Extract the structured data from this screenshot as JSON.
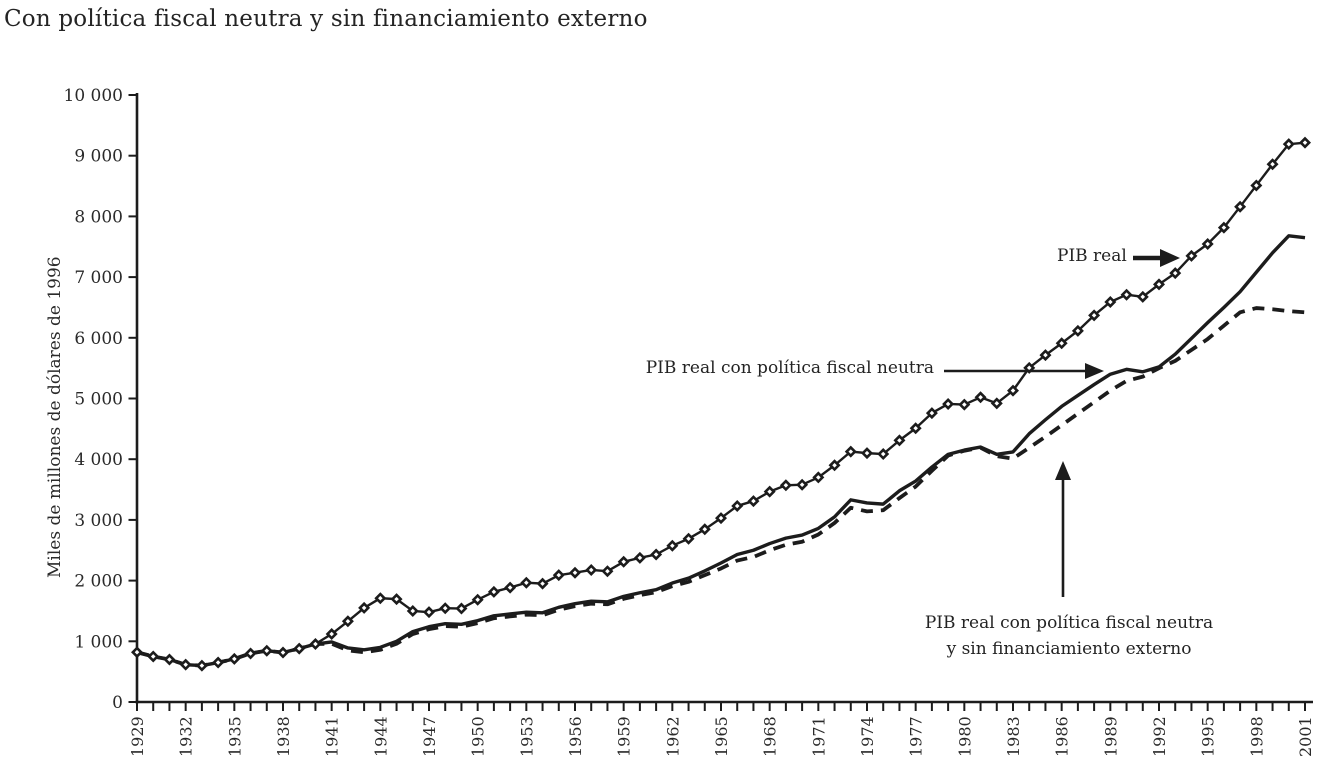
{
  "title": "Con política fiscal neutra y sin financiamiento externo",
  "colors": {
    "ink": "#1c1c1c",
    "text": "#2a2a2a",
    "background": "#ffffff"
  },
  "annotations": {
    "pib_real": "PIB real",
    "neutra": "PIB real con política fiscal neutra",
    "sin_fin_line1": "PIB real con política fiscal neutra",
    "sin_fin_line2": "y sin financiamiento externo"
  },
  "chart_data": {
    "type": "line",
    "title": "Con política fiscal neutra y sin financiamiento externo",
    "xlabel": "",
    "ylabel": "Miles de millones de dólares de 1996",
    "ylim": [
      0,
      10000
    ],
    "ytick_step": 1000,
    "ytick_labels": [
      "0",
      "1 000",
      "2 000",
      "3 000",
      "4 000",
      "5 000",
      "6 000",
      "7 000",
      "8 000",
      "9 000",
      "10 000"
    ],
    "x_start": 1929,
    "x_end": 2001,
    "x_step": 1,
    "xtick_label_every": 3,
    "xtick_labels": [
      "1929",
      "1932",
      "1935",
      "1938",
      "1941",
      "1944",
      "1947",
      "1950",
      "1953",
      "1956",
      "1959",
      "1962",
      "1965",
      "1968",
      "1971",
      "1974",
      "1977",
      "1980",
      "1983",
      "1986",
      "1989",
      "1992",
      "1995",
      "1998",
      "2001"
    ],
    "grid": false,
    "legend_position": "inline-annotations",
    "series": [
      {
        "name": "PIB real",
        "style": "solid-with-diamond-markers",
        "values": [
          820,
          750,
          700,
          615,
          600,
          650,
          710,
          800,
          845,
          815,
          880,
          955,
          1120,
          1330,
          1550,
          1710,
          1695,
          1500,
          1480,
          1545,
          1540,
          1685,
          1815,
          1885,
          1965,
          1950,
          2090,
          2130,
          2175,
          2155,
          2310,
          2375,
          2430,
          2575,
          2690,
          2845,
          3030,
          3230,
          3310,
          3465,
          3570,
          3580,
          3700,
          3900,
          4125,
          4100,
          4085,
          4310,
          4510,
          4760,
          4910,
          4900,
          5020,
          4920,
          5130,
          5505,
          5715,
          5910,
          6115,
          6370,
          6590,
          6710,
          6675,
          6880,
          7065,
          7350,
          7545,
          7815,
          8160,
          8510,
          8860,
          9190,
          9215
        ]
      },
      {
        "name": "PIB real con política fiscal neutra",
        "style": "solid",
        "values": [
          820,
          750,
          700,
          615,
          600,
          650,
          710,
          800,
          845,
          815,
          880,
          955,
          990,
          890,
          860,
          900,
          1000,
          1160,
          1240,
          1290,
          1280,
          1340,
          1420,
          1450,
          1480,
          1470,
          1560,
          1620,
          1660,
          1650,
          1740,
          1800,
          1850,
          1960,
          2040,
          2160,
          2290,
          2430,
          2500,
          2610,
          2700,
          2750,
          2860,
          3050,
          3330,
          3280,
          3260,
          3480,
          3640,
          3870,
          4080,
          4150,
          4200,
          4080,
          4120,
          4420,
          4650,
          4870,
          5050,
          5230,
          5400,
          5480,
          5440,
          5520,
          5730,
          5990,
          6250,
          6500,
          6760,
          7080,
          7400,
          7680,
          7650
        ]
      },
      {
        "name": "PIB real con política fiscal neutra y sin financiamiento externo",
        "style": "dashed",
        "values": [
          820,
          750,
          700,
          615,
          600,
          650,
          710,
          800,
          845,
          815,
          880,
          955,
          960,
          850,
          820,
          860,
          960,
          1120,
          1200,
          1250,
          1240,
          1300,
          1380,
          1410,
          1440,
          1430,
          1520,
          1580,
          1620,
          1610,
          1700,
          1760,
          1810,
          1910,
          1980,
          2090,
          2200,
          2330,
          2390,
          2500,
          2590,
          2640,
          2760,
          2950,
          3200,
          3140,
          3160,
          3360,
          3550,
          3810,
          4060,
          4140,
          4190,
          4050,
          4010,
          4190,
          4370,
          4560,
          4750,
          4940,
          5130,
          5290,
          5360,
          5500,
          5620,
          5800,
          5980,
          6200,
          6420,
          6490,
          6470,
          6440,
          6420
        ]
      }
    ],
    "annotations": [
      {
        "text": "PIB real",
        "arrow": "right",
        "points_to": "PIB real"
      },
      {
        "text": "PIB real con política fiscal neutra",
        "arrow": "right",
        "points_to": "PIB real con política fiscal neutra"
      },
      {
        "text": "PIB real con política fiscal neutra y sin financiamiento externo",
        "arrow": "up",
        "points_to": "PIB real con política fiscal neutra y sin financiamiento externo"
      }
    ]
  }
}
